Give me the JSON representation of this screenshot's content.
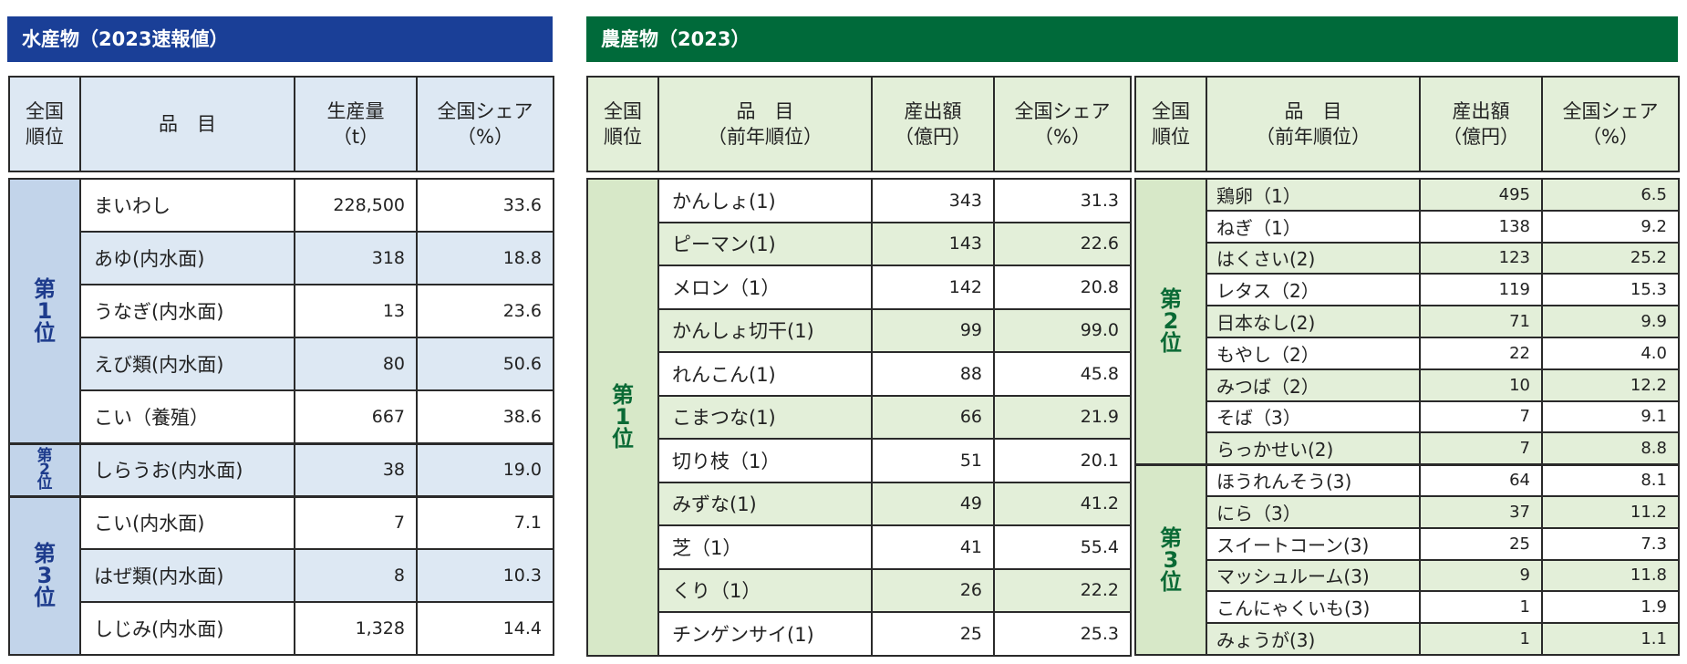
{
  "fishery": {
    "title": "水産物（2023速報値）",
    "headers": [
      "全国\n順位",
      "品　目",
      "生産量\n（t）",
      "全国シェア\n（%）"
    ],
    "ranks": {
      "r1": "第\n1\n位",
      "r2": "第\n2\n位",
      "r3": "第\n3\n位"
    },
    "rows": [
      {
        "name": "まいわし",
        "value": "228,500",
        "share": "33.6"
      },
      {
        "name": "あゆ(内水面)",
        "value": "318",
        "share": "18.8"
      },
      {
        "name": "うなぎ(内水面)",
        "value": "13",
        "share": "23.6"
      },
      {
        "name": "えび類(内水面)",
        "value": "80",
        "share": "50.6"
      },
      {
        "name": "こい（養殖）",
        "value": "667",
        "share": "38.6"
      },
      {
        "name": "しらうお(内水面)",
        "value": "38",
        "share": "19.0"
      },
      {
        "name": "こい(内水面)",
        "value": "7",
        "share": "7.1"
      },
      {
        "name": "はぜ類(内水面)",
        "value": "8",
        "share": "10.3"
      },
      {
        "name": "しじみ(内水面)",
        "value": "1,328",
        "share": "14.4"
      }
    ]
  },
  "agri": {
    "title": "農産物（2023）",
    "headers": [
      "全国\n順位",
      "品　目\n（前年順位）",
      "産出額\n（億円）",
      "全国シェア\n（%）"
    ],
    "ranks": {
      "r1": "第\n1\n位",
      "r2": "第\n2\n位",
      "r3": "第\n3\n位"
    },
    "left_rows": [
      {
        "name": "かんしょ(1)",
        "value": "343",
        "share": "31.3"
      },
      {
        "name": "ピーマン(1)",
        "value": "143",
        "share": "22.6"
      },
      {
        "name": "メロン（1）",
        "value": "142",
        "share": "20.8"
      },
      {
        "name": "かんしょ切干(1)",
        "value": "99",
        "share": "99.0"
      },
      {
        "name": "れんこん(1)",
        "value": "88",
        "share": "45.8"
      },
      {
        "name": "こまつな(1)",
        "value": "66",
        "share": "21.9"
      },
      {
        "name": "切り枝（1）",
        "value": "51",
        "share": "20.1"
      },
      {
        "name": "みずな(1)",
        "value": "49",
        "share": "41.2"
      },
      {
        "name": "芝（1）",
        "value": "41",
        "share": "55.4"
      },
      {
        "name": "くり（1）",
        "value": "26",
        "share": "22.2"
      },
      {
        "name": "チンゲンサイ(1)",
        "value": "25",
        "share": "25.3"
      }
    ],
    "right_rows": [
      {
        "name": "鶏卵（1）",
        "value": "495",
        "share": "6.5"
      },
      {
        "name": "ねぎ（1）",
        "value": "138",
        "share": "9.2"
      },
      {
        "name": "はくさい(2)",
        "value": "123",
        "share": "25.2"
      },
      {
        "name": "レタス（2）",
        "value": "119",
        "share": "15.3"
      },
      {
        "name": "日本なし(2)",
        "value": "71",
        "share": "9.9"
      },
      {
        "name": "もやし（2）",
        "value": "22",
        "share": "4.0"
      },
      {
        "name": "みつば（2）",
        "value": "10",
        "share": "12.2"
      },
      {
        "name": "そば（3）",
        "value": "7",
        "share": "9.1"
      },
      {
        "name": "らっかせい(2)",
        "value": "7",
        "share": "8.8"
      },
      {
        "name": "ほうれんそう(3)",
        "value": "64",
        "share": "8.1"
      },
      {
        "name": "にら（3）",
        "value": "37",
        "share": "11.2"
      },
      {
        "name": "スイートコーン(3)",
        "value": "25",
        "share": "7.3"
      },
      {
        "name": "マッシュルーム(3)",
        "value": "9",
        "share": "11.8"
      },
      {
        "name": "こんにゃくいも(3)",
        "value": "1",
        "share": "1.9"
      },
      {
        "name": "みょうが(3)",
        "value": "1",
        "share": "1.1"
      }
    ]
  }
}
